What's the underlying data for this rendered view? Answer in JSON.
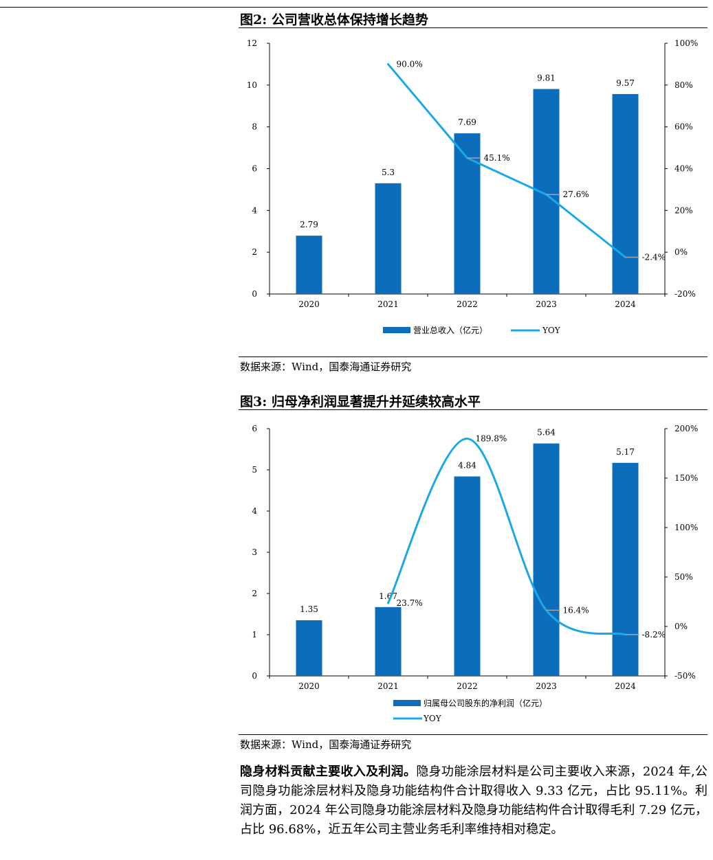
{
  "figure2": {
    "title": "图2:  公司营收总体保持增长趋势",
    "source": "数据来源：Wind，国泰海通证券研究",
    "legend": {
      "bar_label": "营业总收入（亿元）",
      "line_label": "YOY"
    }
  },
  "figure3": {
    "title": "图3:  归母净利润显著提升并延续较高水平",
    "source": "数据来源：Wind，国泰海通证券研究",
    "legend": {
      "bar_label": "归属母公司股东的净利润（亿元）",
      "line_label": "YOY"
    }
  },
  "paragraph": {
    "lead": "隐身材料贡献主要收入及利润。",
    "body": "隐身功能涂层材料是公司主要收入来源，2024 年,公司隐身功能涂层材料及隐身功能结构件合计取得收入 9.33 亿元，占比 95.11%。利润方面，2024 年公司隐身功能涂层材料及隐身功能结构件合计取得毛利 7.29 亿元，占比 96.68%，近五年公司主营业务毛利率维持相对稳定。"
  },
  "colors": {
    "bar": "#0b6dbb",
    "line": "#1aa9e6",
    "leader": "#a6a6a6"
  },
  "chart_data": [
    {
      "type": "bar",
      "categories": [
        "2020",
        "2021",
        "2022",
        "2023",
        "2024"
      ],
      "series": [
        {
          "name": "营业总收入（亿元）",
          "type": "bar",
          "axis": "left",
          "values": [
            2.79,
            5.3,
            7.69,
            9.81,
            9.57
          ],
          "labels": [
            "2.79",
            "5.3",
            "7.69",
            "9.81",
            "9.57"
          ]
        },
        {
          "name": "YOY",
          "type": "line",
          "axis": "right",
          "values": [
            null,
            90.0,
            45.1,
            27.6,
            -2.4
          ],
          "labels": [
            "",
            "90.0%",
            "45.1%",
            "27.6%",
            "-2.4%"
          ]
        }
      ],
      "ylim": [
        0,
        12
      ],
      "yticks": [
        "0",
        "2",
        "4",
        "6",
        "8",
        "10",
        "12"
      ],
      "y2lim": [
        -20,
        100
      ],
      "y2ticks": [
        "-20%",
        "0%",
        "20%",
        "40%",
        "60%",
        "80%",
        "100%"
      ],
      "legend_position": "bottom"
    },
    {
      "type": "bar",
      "categories": [
        "2020",
        "2021",
        "2022",
        "2023",
        "2024"
      ],
      "series": [
        {
          "name": "归属母公司股东的净利润（亿元）",
          "type": "bar",
          "axis": "left",
          "values": [
            1.35,
            1.67,
            4.84,
            5.64,
            5.17
          ],
          "labels": [
            "1.35",
            "1.67",
            "4.84",
            "5.64",
            "5.17"
          ]
        },
        {
          "name": "YOY",
          "type": "line",
          "axis": "right",
          "values": [
            null,
            23.7,
            189.8,
            16.4,
            -8.2
          ],
          "labels": [
            "",
            "23.7%",
            "189.8%",
            "16.4%",
            "-8.2%"
          ]
        }
      ],
      "ylim": [
        0,
        6
      ],
      "yticks": [
        "0",
        "1",
        "2",
        "3",
        "4",
        "5",
        "6"
      ],
      "y2lim": [
        -50,
        200
      ],
      "y2ticks": [
        "-50%",
        "0%",
        "50%",
        "100%",
        "150%",
        "200%"
      ],
      "legend_position": "bottom"
    }
  ]
}
